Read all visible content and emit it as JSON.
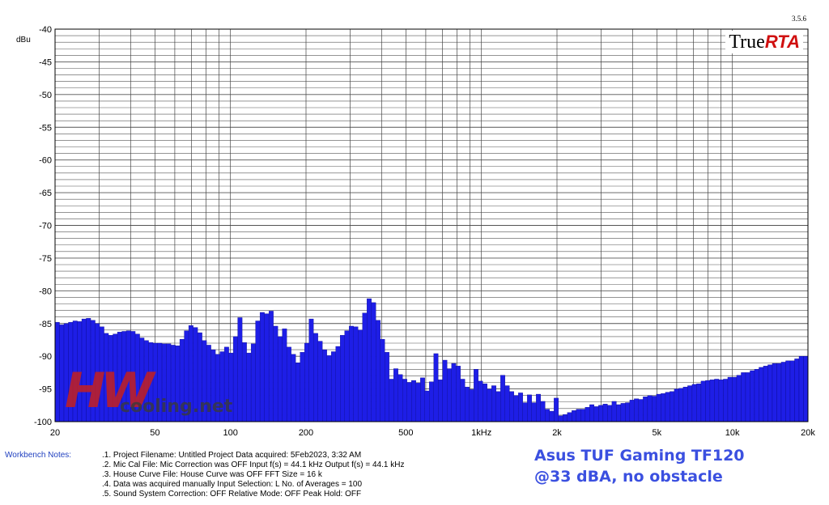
{
  "chart_data": {
    "type": "bar",
    "ylabel": "dBu",
    "ylim": [
      -100,
      -40
    ],
    "xscale": "log",
    "xlim": [
      20,
      20000
    ],
    "y_ticks": [
      -40,
      -45,
      -50,
      -55,
      -60,
      -65,
      -70,
      -75,
      -80,
      -85,
      -90,
      -95,
      -100
    ],
    "x_ticks": [
      {
        "value": 20,
        "label": "20"
      },
      {
        "value": 50,
        "label": "50"
      },
      {
        "value": 100,
        "label": "100"
      },
      {
        "value": 200,
        "label": "200"
      },
      {
        "value": 500,
        "label": "500"
      },
      {
        "value": 1000,
        "label": "1kHz"
      },
      {
        "value": 2000,
        "label": "2k"
      },
      {
        "value": 5000,
        "label": "5k"
      },
      {
        "value": 10000,
        "label": "10k"
      },
      {
        "value": 20000,
        "label": "20k"
      }
    ],
    "grid": true,
    "bar_color": "#1e1ee6",
    "resolution": "1/24 octave",
    "values": [
      -84.8,
      -85.2,
      -85.0,
      -84.8,
      -84.6,
      -84.7,
      -84.3,
      -84.2,
      -84.5,
      -85.0,
      -85.5,
      -86.5,
      -86.8,
      -86.6,
      -86.3,
      -86.2,
      -86.1,
      -86.2,
      -86.6,
      -87.2,
      -87.6,
      -87.9,
      -88.0,
      -88.0,
      -88.1,
      -88.1,
      -88.3,
      -88.4,
      -87.4,
      -86.1,
      -85.3,
      -85.6,
      -86.4,
      -87.6,
      -88.3,
      -89.0,
      -89.7,
      -89.3,
      -88.6,
      -89.5,
      -87.0,
      -84.1,
      -87.9,
      -89.5,
      -88.1,
      -84.6,
      -83.3,
      -83.5,
      -83.1,
      -85.4,
      -87.0,
      -85.8,
      -88.6,
      -89.7,
      -91.0,
      -89.4,
      -88.0,
      -84.3,
      -86.5,
      -87.7,
      -89.0,
      -89.9,
      -89.3,
      -88.5,
      -86.8,
      -86.1,
      -85.4,
      -85.5,
      -86.0,
      -83.4,
      -81.2,
      -81.8,
      -84.5,
      -87.4,
      -89.4,
      -93.5,
      -91.9,
      -92.8,
      -93.5,
      -94.0,
      -93.7,
      -94.1,
      -93.3,
      -95.3,
      -93.9,
      -89.6,
      -93.6,
      -90.6,
      -91.9,
      -91.1,
      -91.5,
      -93.5,
      -94.7,
      -95.1,
      -92.0,
      -93.8,
      -94.2,
      -95.0,
      -94.5,
      -95.4,
      -92.9,
      -94.5,
      -95.4,
      -96.0,
      -95.6,
      -97.1,
      -95.9,
      -97.1,
      -95.8,
      -96.9,
      -98.1,
      -98.4,
      -96.4,
      -99.1,
      -98.9,
      -98.6,
      -98.3,
      -98.1,
      -98.1,
      -97.8,
      -97.4,
      -97.7,
      -97.5,
      -97.3,
      -97.5,
      -96.9,
      -97.4,
      -97.2,
      -97.1,
      -96.7,
      -96.5,
      -96.6,
      -96.2,
      -96.0,
      -96.1,
      -95.8,
      -95.7,
      -95.5,
      -95.4,
      -95.0,
      -94.9,
      -94.7,
      -94.5,
      -94.3,
      -94.2,
      -93.8,
      -93.7,
      -93.6,
      -93.5,
      -93.6,
      -93.5,
      -93.2,
      -93.2,
      -92.9,
      -92.5,
      -92.5,
      -92.2,
      -92.0,
      -91.7,
      -91.5,
      -91.3,
      -91.1,
      -91.1,
      -90.9,
      -90.7,
      -90.7,
      -90.4,
      -90.0,
      -90.0
    ]
  },
  "brand": {
    "true": "True",
    "rta": "RTA",
    "version": "3.5.6"
  },
  "watermark": {
    "hw": "HW",
    "net": "cooling.net"
  },
  "notes": {
    "label": "Workbench Notes:",
    "line1": ".1. Project Filename: Untitled Project        Data acquired: 5Feb2023, 3:32 AM",
    "line2": ".2. Mic Cal File: Mic Correction was OFF                 Input f(s) = 44.1 kHz        Output f(s) = 44.1 kHz",
    "line3": ".3. House Curve File: House Curve was OFF                      FFT Size = 16 k",
    "line4": ".4. Data was acquired manually              Input Selection: L          No. of Averages = 100",
    "line5": ".5. Sound System Correction: OFF                  Relative Mode:  OFF        Peak Hold: OFF"
  },
  "caption": {
    "line1": "Asus TUF Gaming TF120",
    "line2": "@33 dBA, no obstacle"
  }
}
